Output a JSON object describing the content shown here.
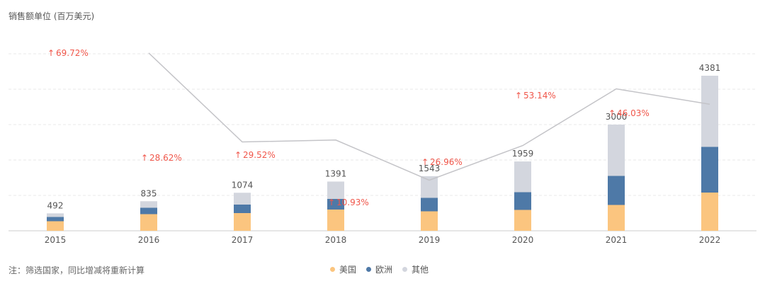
{
  "chart_data": {
    "type": "bar",
    "subtype": "stacked bar with line",
    "unit_label": "销售额单位 (百万美元)",
    "note": "注：筛选国家，同比增减将重新计算",
    "categories": [
      "2015",
      "2016",
      "2017",
      "2018",
      "2019",
      "2020",
      "2021",
      "2022"
    ],
    "totals": [
      492,
      835,
      1074,
      1391,
      1543,
      1959,
      3000,
      4381
    ],
    "series": [
      {
        "name": "美国",
        "color": "#fbc57f",
        "values": [
          270,
          470,
          500,
          600,
          550,
          590,
          730,
          1080
        ]
      },
      {
        "name": "欧洲",
        "color": "#4e79a7",
        "values": [
          120,
          180,
          240,
          300,
          380,
          500,
          820,
          1290
        ]
      },
      {
        "name": "其他",
        "color": "#d3d6de",
        "values": [
          102,
          185,
          334,
          491,
          613,
          869,
          1450,
          2011
        ]
      }
    ],
    "growth_line": {
      "color": "#c4c4c8",
      "labels": [
        "69.72%",
        "28.62%",
        "29.52%",
        "10.93%",
        "26.96%",
        "53.14%",
        "46.03%"
      ],
      "values": [
        69.72,
        28.62,
        29.52,
        10.93,
        26.96,
        53.14,
        46.03
      ],
      "label_color": "#f0564a"
    },
    "ylim": [
      0,
      5000
    ],
    "grid": true
  }
}
